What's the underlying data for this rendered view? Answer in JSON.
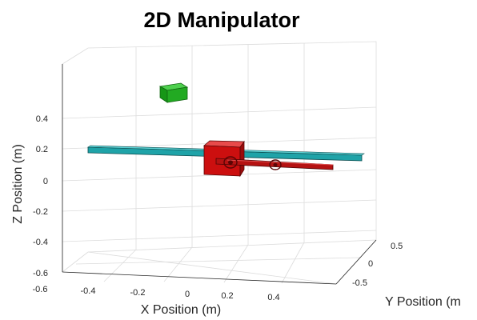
{
  "figure": {
    "title": "2D Manipulator",
    "x_axis": {
      "label": "X Position (m)",
      "ticks": [
        "-0.6",
        "-0.4",
        "-0.2",
        "0",
        "0.2",
        "0.4"
      ]
    },
    "y_axis": {
      "label": "Y Position (m",
      "ticks": [
        "0.5",
        "0",
        "-0.5"
      ]
    },
    "z_axis": {
      "label": "Z Position (m)",
      "ticks": [
        "0.4",
        "0.2",
        "0",
        "-0.2",
        "-0.4",
        "-0.6"
      ]
    }
  },
  "colors": {
    "link1": "#1fa3a8",
    "link2": "#b51212",
    "end_effector_box": "#cc0f0f",
    "target_box": "#22aa22",
    "grid": "#dcdcdc"
  },
  "icons": [
    "joint-icon",
    "joint-icon"
  ]
}
